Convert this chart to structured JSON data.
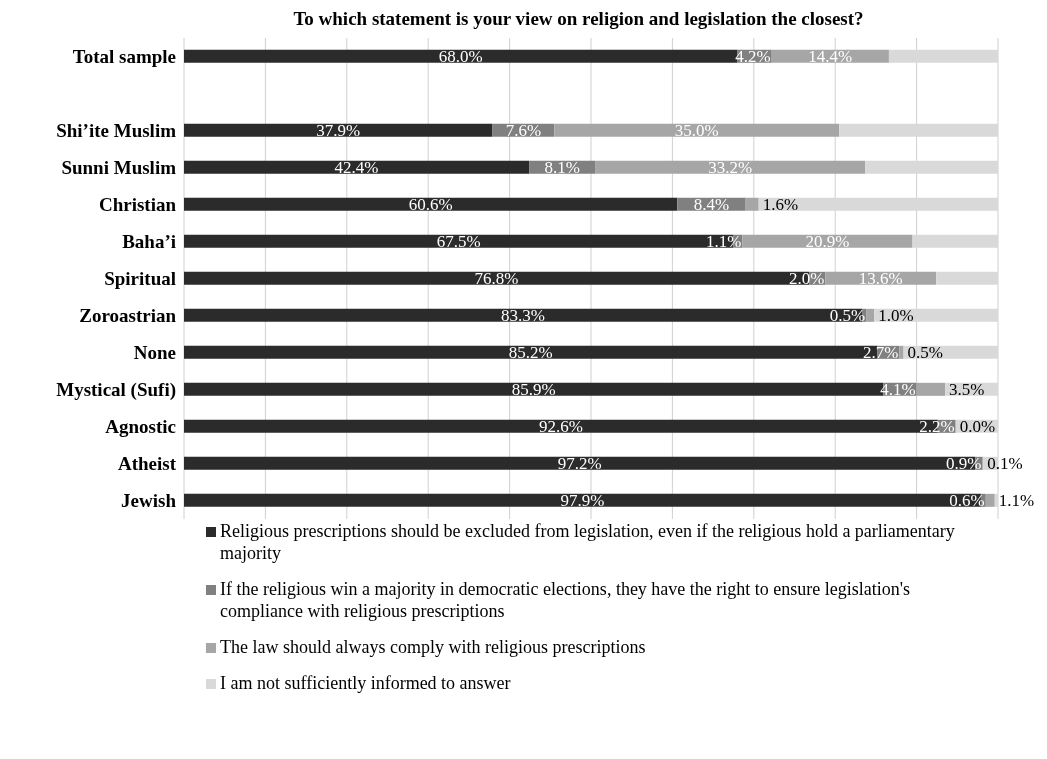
{
  "chart_data": {
    "type": "bar",
    "orientation": "horizontal",
    "stacked": true,
    "title": "To which statement is your view on religion and legislation the closest?",
    "categories": [
      "Total sample",
      null,
      "Shi’ite Muslim",
      "Sunni Muslim",
      "Christian",
      "Baha’i",
      "Spiritual",
      "Zoroastrian",
      "None",
      "Mystical (Sufi)",
      "Agnostic",
      "Atheist",
      "Jewish"
    ],
    "series": [
      {
        "name": "Religious prescriptions should be excluded from legislation, even if the religious hold a parliamentary majority",
        "color": "#2b2b2b",
        "values": [
          68.0,
          null,
          37.9,
          42.4,
          60.6,
          67.5,
          76.8,
          83.3,
          85.2,
          85.9,
          92.6,
          97.2,
          97.9
        ],
        "value_labels": [
          "68.0%",
          null,
          "37.9%",
          "42.4%",
          "60.6%",
          "67.5%",
          "76.8%",
          "83.3%",
          "85.2%",
          "85.9%",
          "92.6%",
          "97.2%",
          "97.9%"
        ]
      },
      {
        "name": "If the religious win a majority in democratic elections, they have the right to ensure legislation's compliance with religious prescriptions",
        "color": "#808080",
        "values": [
          4.2,
          null,
          7.6,
          8.1,
          8.4,
          1.1,
          2.0,
          0.5,
          2.7,
          4.1,
          2.2,
          0.9,
          0.6
        ],
        "value_labels": [
          "4.2%",
          null,
          "7.6%",
          "8.1%",
          "8.4%",
          "1.1%",
          "2.0%",
          "0.5%",
          "2.7%",
          "4.1%",
          "2.2%",
          "0.9%",
          "0.6%"
        ]
      },
      {
        "name": "The law should always comply with religious prescriptions",
        "color": "#a6a6a6",
        "values": [
          14.4,
          null,
          35.0,
          33.2,
          1.6,
          20.9,
          13.6,
          1.0,
          0.5,
          3.5,
          0.0,
          0.1,
          1.1
        ],
        "value_labels": [
          "14.4%",
          null,
          "35.0%",
          "33.2%",
          "1.6%",
          "20.9%",
          "13.6%",
          "1.0%",
          "0.5%",
          "3.5%",
          "0.0%",
          "0.1%",
          "1.1%"
        ]
      },
      {
        "name": "I am not sufficiently informed to answer",
        "color": "#d9d9d9",
        "values": [
          13.4,
          null,
          19.5,
          16.3,
          29.4,
          10.5,
          7.6,
          15.2,
          11.6,
          6.5,
          5.2,
          1.8,
          0.4
        ]
      }
    ],
    "xlim": [
      0,
      100
    ],
    "xticks": [
      {
        "value": 0,
        "label": null
      },
      {
        "value": 10,
        "label": null
      },
      {
        "value": 20,
        "label": null
      },
      {
        "value": 30,
        "label": null
      },
      {
        "value": 40,
        "label": null
      },
      {
        "value": 50,
        "label": null
      },
      {
        "value": 60,
        "label": null
      },
      {
        "value": 70,
        "label": null
      },
      {
        "value": 80,
        "label": null
      },
      {
        "value": 90,
        "label": null
      },
      {
        "value": 100,
        "label": null
      }
    ],
    "tick_labels": "y",
    "grid": "x",
    "legend": "bottom"
  }
}
